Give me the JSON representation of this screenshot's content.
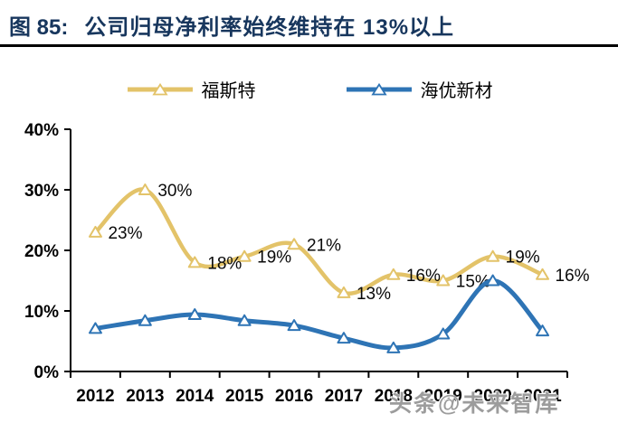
{
  "header": {
    "figure_label": "图 85:",
    "title": "公司归母净利率始终维持在 13%以上",
    "accent_color": "#17365D"
  },
  "chart_data": {
    "type": "line",
    "title": "公司归母净利率始终维持在 13%以上",
    "categories": [
      "2012",
      "2013",
      "2014",
      "2015",
      "2016",
      "2017",
      "2018",
      "2019",
      "2020",
      "2021"
    ],
    "xlabel": "",
    "ylabel": "",
    "ylim": [
      0,
      40
    ],
    "yticks": [
      {
        "v": 0,
        "label": "0%"
      },
      {
        "v": 10,
        "label": "10%"
      },
      {
        "v": 20,
        "label": "20%"
      },
      {
        "v": 30,
        "label": "30%"
      },
      {
        "v": 40,
        "label": "40%"
      }
    ],
    "grid": false,
    "smooth": true,
    "legend_position": "top",
    "marker": "triangle-up",
    "series": [
      {
        "name": "福斯特",
        "color": "#E3C369",
        "line_width": 4.5,
        "values": [
          23,
          30,
          18,
          19,
          21,
          13,
          16,
          15,
          19,
          16
        ],
        "point_labels": [
          "23%",
          "30%",
          "18%",
          "19%",
          "21%",
          "13%",
          "16%",
          "15%",
          "19%",
          "16%"
        ]
      },
      {
        "name": "海优新材",
        "color": "#2E74B5",
        "line_width": 5,
        "values": [
          7.1,
          8.4,
          9.4,
          8.4,
          7.6,
          5.5,
          3.9,
          6.2,
          15,
          6.7
        ],
        "point_labels": []
      }
    ]
  },
  "watermark": {
    "text": "头条@未来智库",
    "color": "#9c9c9c"
  }
}
